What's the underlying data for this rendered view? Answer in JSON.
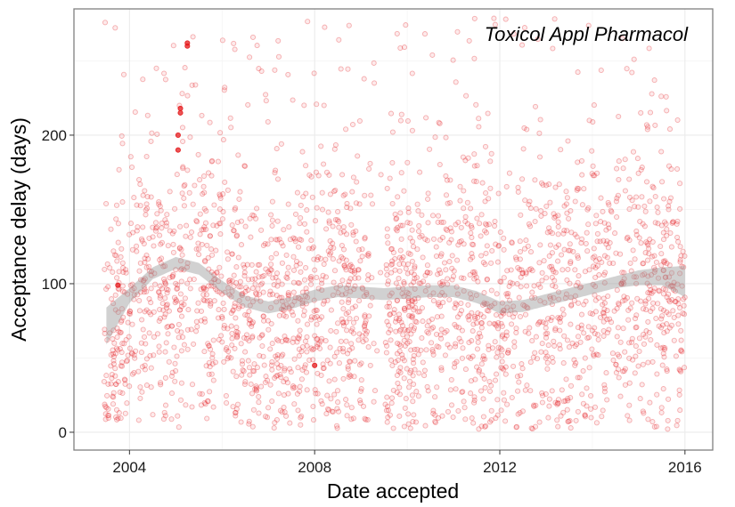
{
  "chart_data": {
    "type": "scatter",
    "title": "",
    "annotation": "Toxicol Appl Pharmacol",
    "xlabel": "Date accepted",
    "ylabel": "Acceptance delay (days)",
    "xlim": [
      2002.8,
      2016.6
    ],
    "ylim": [
      -12,
      285
    ],
    "x_ticks": [
      2004,
      2008,
      2012,
      2016
    ],
    "x_tick_labels": [
      "2004",
      "2008",
      "2012",
      "2016"
    ],
    "y_ticks": [
      0,
      100,
      200
    ],
    "y_tick_labels": [
      "0",
      "100",
      "200"
    ],
    "grid": true,
    "legend": "none",
    "point_color": "#e41a1c",
    "point_alpha": 0.15,
    "smooth_band_color": "#999999",
    "point_count": 2600,
    "highlight_points": [
      {
        "x": 2003.75,
        "y": 99
      },
      {
        "x": 2008.0,
        "y": 45
      },
      {
        "x": 2005.05,
        "y": 190
      },
      {
        "x": 2005.05,
        "y": 200
      },
      {
        "x": 2005.1,
        "y": 215
      },
      {
        "x": 2005.1,
        "y": 218
      },
      {
        "x": 2005.25,
        "y": 260
      },
      {
        "x": 2005.25,
        "y": 262
      }
    ],
    "smooth": [
      {
        "x": 2003.5,
        "fit": 70,
        "lower": 59,
        "upper": 84
      },
      {
        "x": 2004.0,
        "fit": 92,
        "lower": 87,
        "upper": 97
      },
      {
        "x": 2004.5,
        "fit": 107,
        "lower": 103,
        "upper": 111
      },
      {
        "x": 2005.0,
        "fit": 114,
        "lower": 110,
        "upper": 118
      },
      {
        "x": 2005.5,
        "fit": 110,
        "lower": 106,
        "upper": 114
      },
      {
        "x": 2006.0,
        "fit": 98,
        "lower": 94,
        "upper": 102
      },
      {
        "x": 2006.5,
        "fit": 88,
        "lower": 84,
        "upper": 92
      },
      {
        "x": 2007.0,
        "fit": 84,
        "lower": 80,
        "upper": 88
      },
      {
        "x": 2007.5,
        "fit": 87,
        "lower": 83,
        "upper": 91
      },
      {
        "x": 2008.0,
        "fit": 92,
        "lower": 88,
        "upper": 96
      },
      {
        "x": 2008.5,
        "fit": 95,
        "lower": 91,
        "upper": 99
      },
      {
        "x": 2009.0,
        "fit": 94,
        "lower": 90,
        "upper": 98
      },
      {
        "x": 2009.5,
        "fit": 93,
        "lower": 89,
        "upper": 97
      },
      {
        "x": 2010.0,
        "fit": 94,
        "lower": 90,
        "upper": 98
      },
      {
        "x": 2010.5,
        "fit": 95,
        "lower": 91,
        "upper": 99
      },
      {
        "x": 2011.0,
        "fit": 95,
        "lower": 91,
        "upper": 99
      },
      {
        "x": 2011.5,
        "fit": 91,
        "lower": 87,
        "upper": 95
      },
      {
        "x": 2012.0,
        "fit": 84,
        "lower": 80,
        "upper": 88
      },
      {
        "x": 2012.5,
        "fit": 85,
        "lower": 81,
        "upper": 89
      },
      {
        "x": 2013.0,
        "fit": 89,
        "lower": 85,
        "upper": 93
      },
      {
        "x": 2013.5,
        "fit": 93,
        "lower": 89,
        "upper": 97
      },
      {
        "x": 2014.0,
        "fit": 97,
        "lower": 93,
        "upper": 101
      },
      {
        "x": 2014.5,
        "fit": 101,
        "lower": 97,
        "upper": 105
      },
      {
        "x": 2015.0,
        "fit": 104,
        "lower": 99,
        "upper": 109
      },
      {
        "x": 2015.5,
        "fit": 105,
        "lower": 99,
        "upper": 111
      },
      {
        "x": 2016.0,
        "fit": 101,
        "lower": 91,
        "upper": 112
      }
    ]
  }
}
